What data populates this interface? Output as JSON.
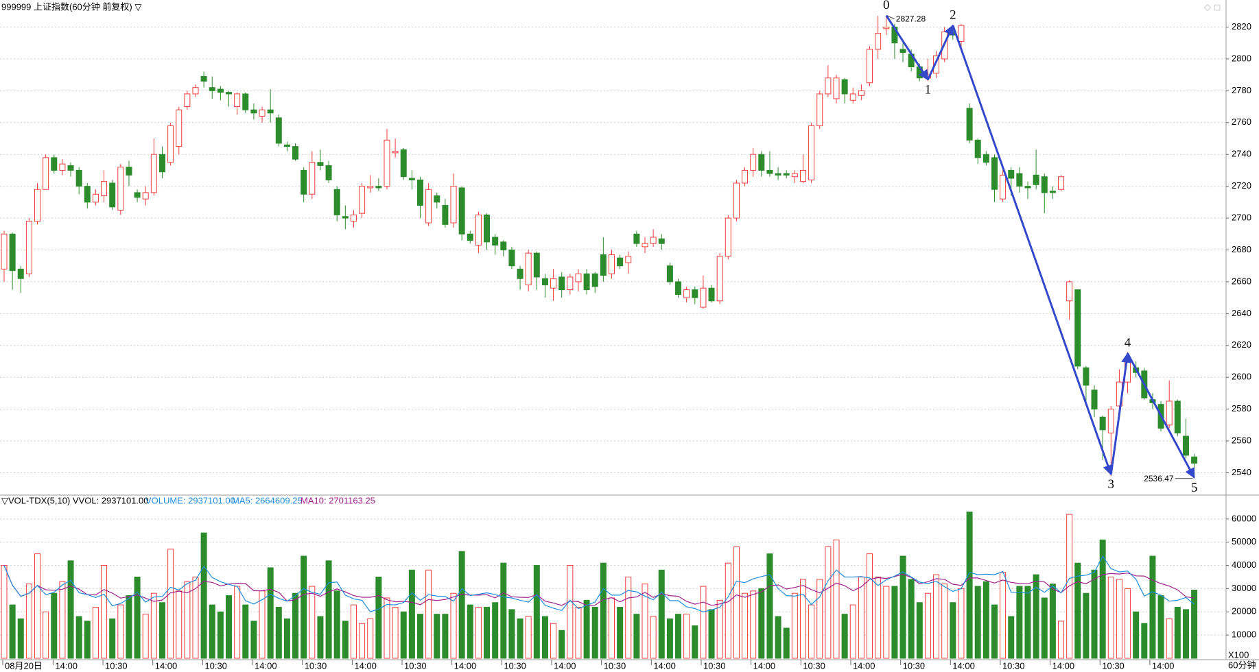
{
  "chart_data": {
    "type": "candlestick",
    "title": "999999 上证指数(60分钟 前复权) ▽",
    "up_color": "#f03c3c",
    "down_color": "#2c8c2c",
    "wave_color": "#3448cc",
    "grid": true,
    "ylim": [
      2526,
      2837
    ],
    "yticks": [
      2540,
      2560,
      2580,
      2600,
      2620,
      2640,
      2660,
      2680,
      2700,
      2720,
      2740,
      2760,
      2780,
      2800,
      2820
    ],
    "ohlc": [
      [
        2668,
        2692,
        2660,
        2690
      ],
      [
        2690,
        2691,
        2655,
        2667
      ],
      [
        2668,
        2670,
        2653,
        2662
      ],
      [
        2665,
        2700,
        2663,
        2698
      ],
      [
        2698,
        2722,
        2696,
        2718
      ],
      [
        2718,
        2740,
        2718,
        2738
      ],
      [
        2738,
        2740,
        2728,
        2730
      ],
      [
        2730,
        2737,
        2727,
        2734
      ],
      [
        2733,
        2735,
        2726,
        2730
      ],
      [
        2730,
        2732,
        2715,
        2720
      ],
      [
        2720,
        2722,
        2706,
        2710
      ],
      [
        2710,
        2718,
        2708,
        2715
      ],
      [
        2714,
        2730,
        2710,
        2723
      ],
      [
        2722,
        2724,
        2705,
        2707
      ],
      [
        2705,
        2734,
        2702,
        2732
      ],
      [
        2732,
        2736,
        2720,
        2727
      ],
      [
        2716,
        2718,
        2710,
        2713
      ],
      [
        2712,
        2720,
        2708,
        2716
      ],
      [
        2716,
        2750,
        2714,
        2740
      ],
      [
        2740,
        2745,
        2725,
        2729
      ],
      [
        2735,
        2760,
        2733,
        2758
      ],
      [
        2745,
        2770,
        2740,
        2768
      ],
      [
        2770,
        2780,
        2768,
        2778
      ],
      [
        2778,
        2784,
        2776,
        2782
      ],
      [
        2789,
        2792,
        2782,
        2786
      ],
      [
        2782,
        2789,
        2775,
        2780
      ],
      [
        2781,
        2783,
        2774,
        2779
      ],
      [
        2779,
        2780,
        2770,
        2778
      ],
      [
        2770,
        2779,
        2765,
        2778
      ],
      [
        2778,
        2779,
        2766,
        2768
      ],
      [
        2768,
        2772,
        2762,
        2766
      ],
      [
        2764,
        2770,
        2760,
        2768
      ],
      [
        2768,
        2781,
        2760,
        2766
      ],
      [
        2763,
        2765,
        2745,
        2747
      ],
      [
        2746,
        2748,
        2742,
        2745
      ],
      [
        2745,
        2747,
        2736,
        2737
      ],
      [
        2730,
        2732,
        2710,
        2715
      ],
      [
        2715,
        2742,
        2712,
        2735
      ],
      [
        2735,
        2743,
        2730,
        2733
      ],
      [
        2733,
        2736,
        2722,
        2724
      ],
      [
        2718,
        2720,
        2698,
        2702
      ],
      [
        2701,
        2708,
        2693,
        2700
      ],
      [
        2698,
        2705,
        2694,
        2702
      ],
      [
        2703,
        2722,
        2700,
        2720
      ],
      [
        2719,
        2727,
        2716,
        2720
      ],
      [
        2720,
        2725,
        2717,
        2719
      ],
      [
        2720,
        2756,
        2718,
        2749
      ],
      [
        2741,
        2750,
        2738,
        2742
      ],
      [
        2743,
        2744,
        2724,
        2726
      ],
      [
        2725,
        2730,
        2718,
        2724
      ],
      [
        2724,
        2726,
        2700,
        2708
      ],
      [
        2697,
        2722,
        2695,
        2718
      ],
      [
        2714,
        2716,
        2706,
        2710
      ],
      [
        2708,
        2712,
        2694,
        2696
      ],
      [
        2697,
        2728,
        2694,
        2720
      ],
      [
        2719,
        2720,
        2686,
        2690
      ],
      [
        2690,
        2692,
        2684,
        2686
      ],
      [
        2683,
        2704,
        2678,
        2702
      ],
      [
        2702,
        2703,
        2680,
        2685
      ],
      [
        2688,
        2690,
        2677,
        2683
      ],
      [
        2685,
        2686,
        2676,
        2680
      ],
      [
        2680,
        2682,
        2668,
        2670
      ],
      [
        2668,
        2670,
        2655,
        2662
      ],
      [
        2658,
        2680,
        2654,
        2678
      ],
      [
        2678,
        2679,
        2655,
        2663
      ],
      [
        2662,
        2665,
        2650,
        2658
      ],
      [
        2656,
        2668,
        2648,
        2662
      ],
      [
        2663,
        2666,
        2650,
        2655
      ],
      [
        2655,
        2665,
        2652,
        2663
      ],
      [
        2660,
        2668,
        2654,
        2665
      ],
      [
        2665,
        2668,
        2652,
        2655
      ],
      [
        2665,
        2666,
        2653,
        2657
      ],
      [
        2677,
        2688,
        2660,
        2664
      ],
      [
        2665,
        2680,
        2662,
        2677
      ],
      [
        2675,
        2677,
        2668,
        2670
      ],
      [
        2672,
        2679,
        2665,
        2676
      ],
      [
        2690,
        2692,
        2682,
        2684
      ],
      [
        2682,
        2688,
        2678,
        2684
      ],
      [
        2684,
        2693,
        2682,
        2688
      ],
      [
        2687,
        2690,
        2680,
        2684
      ],
      [
        2670,
        2672,
        2658,
        2660
      ],
      [
        2660,
        2662,
        2650,
        2652
      ],
      [
        2650,
        2657,
        2647,
        2655
      ],
      [
        2655,
        2657,
        2646,
        2650
      ],
      [
        2644,
        2664,
        2643,
        2656
      ],
      [
        2656,
        2658,
        2647,
        2648
      ],
      [
        2648,
        2678,
        2646,
        2676
      ],
      [
        2676,
        2702,
        2674,
        2700
      ],
      [
        2700,
        2724,
        2698,
        2722
      ],
      [
        2722,
        2732,
        2720,
        2730
      ],
      [
        2730,
        2744,
        2726,
        2740
      ],
      [
        2740,
        2742,
        2726,
        2730
      ],
      [
        2730,
        2742,
        2726,
        2728
      ],
      [
        2728,
        2732,
        2724,
        2727
      ],
      [
        2728,
        2730,
        2725,
        2727
      ],
      [
        2726,
        2730,
        2722,
        2728
      ],
      [
        2723,
        2740,
        2722,
        2730
      ],
      [
        2724,
        2760,
        2722,
        2758
      ],
      [
        2758,
        2780,
        2756,
        2778
      ],
      [
        2778,
        2796,
        2776,
        2788
      ],
      [
        2775,
        2790,
        2772,
        2788
      ],
      [
        2787,
        2788,
        2772,
        2778
      ],
      [
        2774,
        2782,
        2772,
        2778
      ],
      [
        2777,
        2784,
        2774,
        2780
      ],
      [
        2785,
        2808,
        2783,
        2806
      ],
      [
        2806,
        2827,
        2800,
        2816
      ],
      [
        2819,
        2827.28,
        2815,
        2820
      ],
      [
        2820,
        2822,
        2800,
        2810
      ],
      [
        2806,
        2810,
        2798,
        2804
      ],
      [
        2803,
        2806,
        2792,
        2795
      ],
      [
        2795,
        2797,
        2786,
        2788
      ],
      [
        2788,
        2800,
        2786,
        2790
      ],
      [
        2791,
        2805,
        2788,
        2802
      ],
      [
        2800,
        2820,
        2798,
        2817
      ],
      [
        2817,
        2820,
        2812,
        2815
      ],
      [
        2811,
        2822,
        2806,
        2821
      ],
      [
        2769,
        2772,
        2747,
        2749
      ],
      [
        2749,
        2750,
        2734,
        2738
      ],
      [
        2740,
        2742,
        2733,
        2735
      ],
      [
        2738,
        2740,
        2710,
        2718
      ],
      [
        2712,
        2730,
        2710,
        2727
      ],
      [
        2730,
        2732,
        2714,
        2725
      ],
      [
        2728,
        2732,
        2716,
        2720
      ],
      [
        2720,
        2723,
        2712,
        2719
      ],
      [
        2727,
        2743,
        2718,
        2721
      ],
      [
        2726,
        2728,
        2703,
        2716
      ],
      [
        2717,
        2720,
        2712,
        2716
      ],
      [
        2718,
        2727,
        2717,
        2726
      ],
      [
        2648,
        2661,
        2636,
        2660
      ],
      [
        2655,
        2655,
        2605,
        2607
      ],
      [
        2606,
        2607,
        2585,
        2595
      ],
      [
        2592,
        2595,
        2575,
        2580
      ],
      [
        2575,
        2576,
        2548,
        2567
      ],
      [
        2565,
        2582,
        2538,
        2580
      ],
      [
        2582,
        2605,
        2575,
        2597
      ],
      [
        2597,
        2616,
        2590,
        2612
      ],
      [
        2606,
        2610,
        2600,
        2603
      ],
      [
        2604,
        2606,
        2586,
        2587
      ],
      [
        2586,
        2590,
        2580,
        2584
      ],
      [
        2583,
        2585,
        2566,
        2568
      ],
      [
        2570,
        2598,
        2568,
        2585
      ],
      [
        2585,
        2586,
        2563,
        2565
      ],
      [
        2563,
        2574,
        2549,
        2551
      ],
      [
        2550,
        2552,
        2536.47,
        2546
      ]
    ],
    "high_label": 2827.28,
    "low_label": 2536.47,
    "wave_points": [
      {
        "label": "0",
        "index": 106,
        "price": 2827.28
      },
      {
        "label": "1",
        "index": 111,
        "price": 2787
      },
      {
        "label": "2",
        "index": 114,
        "price": 2821
      },
      {
        "label": "3",
        "index": 133,
        "price": 2539
      },
      {
        "label": "4",
        "index": 135,
        "price": 2615
      },
      {
        "label": "5",
        "index": 143,
        "price": 2537
      }
    ],
    "x_labels": [
      "08月20日",
      "14:00",
      "10:30",
      "14:00",
      "10:30",
      "14:00",
      "10:30",
      "14:00",
      "10:30",
      "14:00",
      "10:30",
      "14:00",
      "10:30",
      "14:00",
      "10:30",
      "14:00",
      "10:30",
      "14:00",
      "10:30",
      "14:00",
      "10:30",
      "14:00",
      "10:30",
      "14:00"
    ],
    "period_label": "60分钟",
    "volume": {
      "header": "▽VOL-TDX(5,10) VVOL: 2937101.00",
      "volume_text": "VOLUME: 2937101.00",
      "ma5_text": "MA5: 2664609.25",
      "ma10_text": "MA10: 2701163.25",
      "unit_label": "X100",
      "ma5_color": "#1e8cdc",
      "ma10_color": "#a0208c",
      "ylim": [
        0,
        70000
      ],
      "yticks": [
        10000,
        20000,
        30000,
        40000,
        50000,
        60000
      ],
      "values": [
        40000,
        23000,
        17000,
        32000,
        45000,
        20000,
        28000,
        33000,
        42000,
        18000,
        16000,
        22000,
        40000,
        17000,
        23000,
        27000,
        35000,
        19000,
        28000,
        24000,
        47000,
        29000,
        33000,
        35000,
        54000,
        23000,
        20000,
        27000,
        31000,
        23000,
        16000,
        29000,
        39000,
        22000,
        17000,
        28000,
        44000,
        31000,
        18000,
        42000,
        29000,
        16000,
        23000,
        15000,
        17000,
        35000,
        26000,
        22000,
        20000,
        38000,
        19000,
        38000,
        19000,
        19000,
        28000,
        46000,
        23000,
        22000,
        22000,
        24000,
        41000,
        21000,
        17000,
        18000,
        40000,
        18000,
        15000,
        12000,
        40000,
        22000,
        25000,
        22000,
        41000,
        26000,
        22000,
        35000,
        19000,
        32000,
        18000,
        38000,
        17000,
        19000,
        19000,
        14000,
        31000,
        21000,
        25000,
        41000,
        48000,
        28000,
        29000,
        30000,
        45000,
        18000,
        13000,
        28000,
        34000,
        23000,
        34000,
        48000,
        51000,
        19000,
        23000,
        35000,
        45000,
        35000,
        31000,
        31000,
        44000,
        34000,
        24000,
        28000,
        36000,
        32000,
        24000,
        30000,
        63000,
        31000,
        33000,
        23000,
        37000,
        18000,
        31000,
        31000,
        36000,
        26000,
        32000,
        16000,
        62000,
        41000,
        28000,
        38000,
        51000,
        35000,
        34000,
        30000,
        20000,
        15000,
        44000,
        27000,
        17000,
        22000,
        21000,
        29371.01
      ]
    }
  }
}
